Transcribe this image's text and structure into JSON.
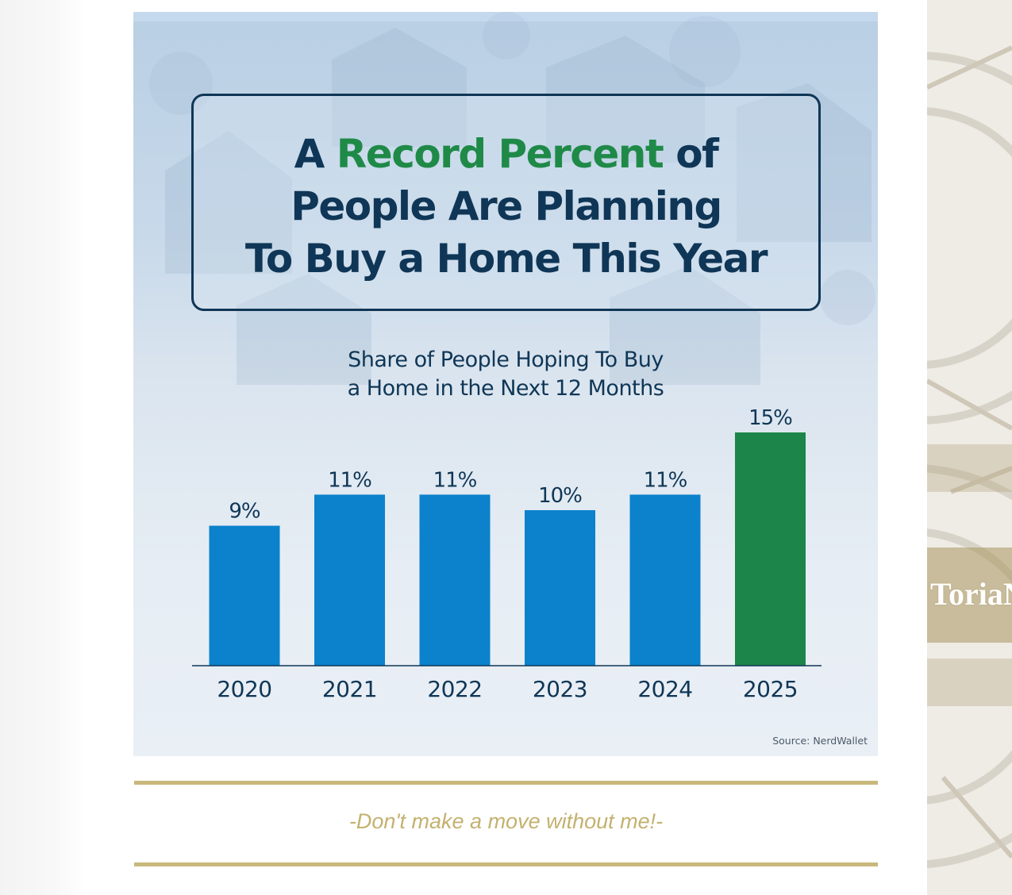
{
  "infographic": {
    "title_line1_before": "A ",
    "title_highlight": "Record Percent",
    "title_line1_after": " of",
    "title_line2": "People Are Planning",
    "title_line3": "To Buy a Home This Year",
    "subtitle_line1": "Share of People Hoping To Buy",
    "subtitle_line2": "a Home in the Next 12 Months",
    "source": "Source: NerdWallet"
  },
  "tagline": "-Don't make a move without me!-",
  "side_decoration_text": "ToriaN",
  "colors": {
    "navy": "#0f3656",
    "bar_blue": "#0b82cb",
    "bar_green": "#1c8549",
    "highlight_green": "#1f8a48",
    "gold": "#c9b87c"
  },
  "chart_data": {
    "type": "bar",
    "title": "Share of People Hoping To Buy a Home in the Next 12 Months",
    "categories": [
      "2020",
      "2021",
      "2022",
      "2023",
      "2024",
      "2025"
    ],
    "values": [
      9,
      11,
      11,
      10,
      11,
      15
    ],
    "value_labels": [
      "9%",
      "11%",
      "11%",
      "10%",
      "11%",
      "15%"
    ],
    "highlighted_category": "2025",
    "ylim": [
      0,
      15
    ],
    "grid": false,
    "legend": "none",
    "xlabel": "",
    "ylabel": ""
  }
}
